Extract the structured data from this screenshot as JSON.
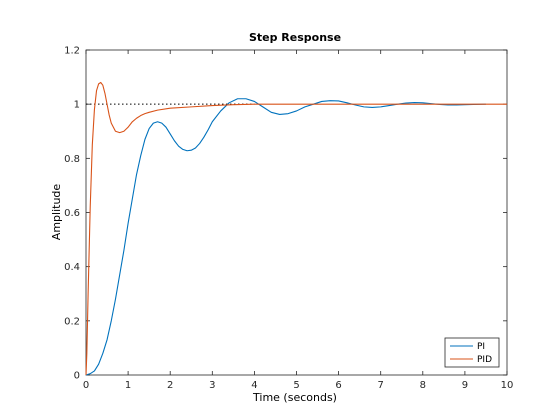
{
  "chart_data": {
    "type": "line",
    "title": "Step Response",
    "xlabel": "Time (seconds)",
    "ylabel": "Amplitude",
    "xlim": [
      0,
      10
    ],
    "ylim": [
      0,
      1.2
    ],
    "xticks": [
      0,
      1,
      2,
      3,
      4,
      5,
      6,
      7,
      8,
      9,
      10
    ],
    "yticks": [
      0,
      0.2,
      0.4,
      0.6,
      0.8,
      1,
      1.2
    ],
    "grid": false,
    "legend_position": "bottom-right",
    "reference_line": {
      "y": 1,
      "style": "dotted",
      "color": "#000000"
    },
    "series": [
      {
        "name": "PI",
        "color": "#0072BD",
        "x": [
          0,
          0.1,
          0.2,
          0.3,
          0.4,
          0.5,
          0.6,
          0.7,
          0.8,
          0.9,
          1.0,
          1.1,
          1.2,
          1.3,
          1.4,
          1.5,
          1.6,
          1.7,
          1.8,
          1.9,
          2.0,
          2.1,
          2.2,
          2.3,
          2.4,
          2.5,
          2.6,
          2.7,
          2.8,
          2.9,
          3.0,
          3.2,
          3.4,
          3.6,
          3.8,
          4.0,
          4.2,
          4.4,
          4.6,
          4.8,
          5.0,
          5.2,
          5.4,
          5.6,
          5.8,
          6.0,
          6.2,
          6.4,
          6.6,
          6.8,
          7.0,
          7.2,
          7.4,
          7.6,
          7.8,
          8.0,
          8.2,
          8.4,
          8.6,
          8.8,
          9.0,
          9.2,
          9.5
        ],
        "y": [
          0,
          0.005,
          0.015,
          0.04,
          0.08,
          0.13,
          0.2,
          0.28,
          0.37,
          0.46,
          0.56,
          0.65,
          0.74,
          0.81,
          0.87,
          0.91,
          0.93,
          0.935,
          0.93,
          0.915,
          0.89,
          0.865,
          0.845,
          0.833,
          0.828,
          0.83,
          0.838,
          0.855,
          0.878,
          0.905,
          0.935,
          0.975,
          1.005,
          1.02,
          1.02,
          1.01,
          0.99,
          0.97,
          0.962,
          0.965,
          0.975,
          0.99,
          1.0,
          1.01,
          1.013,
          1.012,
          1.005,
          0.997,
          0.99,
          0.988,
          0.99,
          0.995,
          1.0,
          1.004,
          1.006,
          1.005,
          1.002,
          0.999,
          0.997,
          0.997,
          0.998,
          0.999,
          1.0
        ]
      },
      {
        "name": "PID",
        "color": "#D95319",
        "x": [
          0,
          0.02,
          0.05,
          0.1,
          0.15,
          0.2,
          0.25,
          0.3,
          0.35,
          0.4,
          0.45,
          0.5,
          0.55,
          0.6,
          0.7,
          0.8,
          0.9,
          1.0,
          1.1,
          1.2,
          1.3,
          1.4,
          1.5,
          1.7,
          2.0,
          2.5,
          3.0,
          3.5,
          4.0,
          5.0,
          6.0,
          7.0,
          8.0,
          9.0,
          10.0
        ],
        "y": [
          0,
          0.08,
          0.3,
          0.62,
          0.85,
          0.98,
          1.05,
          1.075,
          1.08,
          1.07,
          1.04,
          1.0,
          0.96,
          0.93,
          0.9,
          0.895,
          0.9,
          0.915,
          0.935,
          0.948,
          0.958,
          0.965,
          0.97,
          0.978,
          0.985,
          0.99,
          0.995,
          0.998,
          1.0,
          1.0,
          1.0,
          1.0,
          1.0,
          1.0,
          1.0
        ]
      }
    ]
  }
}
